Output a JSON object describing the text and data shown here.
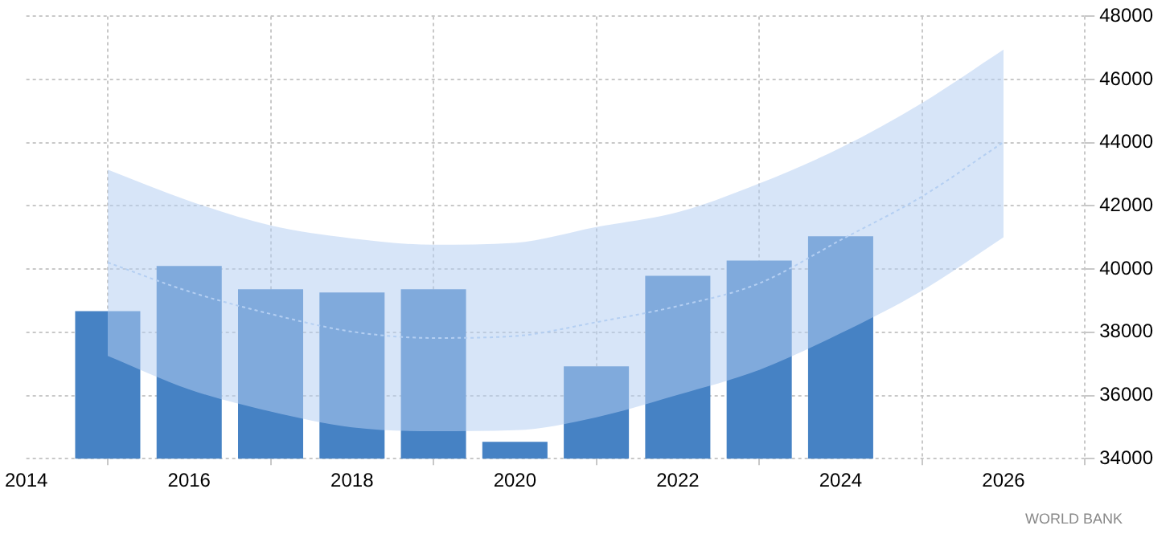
{
  "chart_data": {
    "type": "bar",
    "xlim": [
      2014,
      2027
    ],
    "xticks": [
      2014,
      2016,
      2018,
      2020,
      2022,
      2024,
      2026
    ],
    "ylim": [
      34000,
      48000
    ],
    "yticks": [
      34000,
      36000,
      38000,
      40000,
      42000,
      44000,
      46000,
      48000
    ],
    "grid": true,
    "marker": "none",
    "annotations": [
      "WORLD BANK"
    ],
    "series": [
      {
        "color": "#4682c4",
        "x": [
          2015,
          2016,
          2017,
          2018,
          2019,
          2020,
          2021,
          2022,
          2023,
          2024
        ],
        "values": [
          38670,
          40100,
          39360,
          39260,
          39360,
          34530,
          36920,
          39790,
          40270,
          41040
        ]
      },
      {
        "type": "line",
        "color": "#b4cff2",
        "line_style": "dotted",
        "x": [
          2015,
          2016,
          2017,
          2018,
          2019,
          2020,
          2021,
          2022,
          2023,
          2024,
          2025,
          2026
        ],
        "values": [
          40210,
          39290,
          38580,
          38020,
          37820,
          37880,
          38320,
          38830,
          39550,
          40920,
          42300,
          44020
        ],
        "lower": [
          37250,
          36190,
          35490,
          34990,
          34870,
          34900,
          35310,
          36020,
          36810,
          37970,
          39320,
          41010
        ],
        "upper": [
          43150,
          42160,
          41380,
          40970,
          40770,
          40830,
          41330,
          41800,
          42710,
          43840,
          45260,
          46950
        ]
      }
    ]
  }
}
